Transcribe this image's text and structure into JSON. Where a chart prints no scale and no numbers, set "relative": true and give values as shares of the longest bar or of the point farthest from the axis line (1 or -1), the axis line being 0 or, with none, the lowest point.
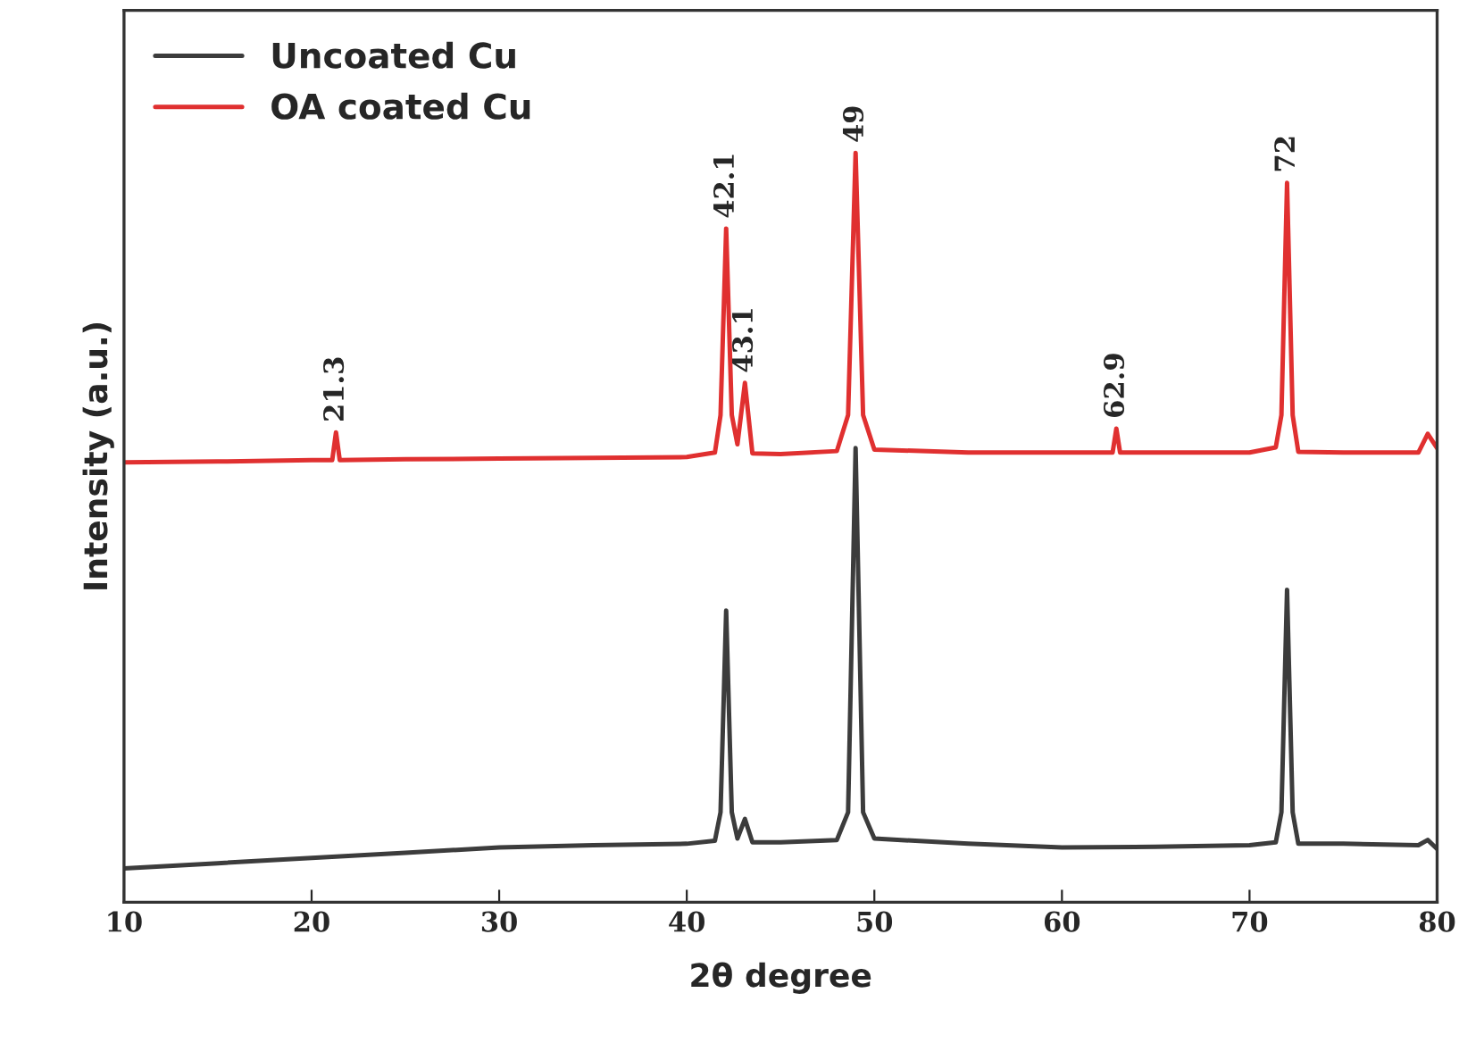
{
  "chart_data": {
    "type": "line",
    "relative": true,
    "xlabel": "2θ degree",
    "ylabel": "Intensity (a.u.)",
    "xlim": [
      10,
      80
    ],
    "xticks": [
      10,
      20,
      30,
      40,
      50,
      60,
      70,
      80
    ],
    "legend": "top left",
    "grid": false,
    "marker": "none",
    "line_style": "solid",
    "series": [
      {
        "name": "Uncoated Cu",
        "color": "#3c3c3c",
        "x": [
          10,
          15,
          20,
          25,
          30,
          35,
          40,
          41.5,
          41.8,
          42.1,
          42.4,
          42.7,
          43.1,
          43.5,
          45,
          48,
          48.6,
          49,
          49.4,
          50,
          55,
          60,
          65,
          70,
          71.4,
          71.7,
          72,
          72.3,
          72.6,
          75,
          79,
          79.5,
          80
        ],
        "values": [
          0.045,
          0.052,
          0.059,
          0.066,
          0.073,
          0.076,
          0.078,
          0.082,
          0.12,
          0.389,
          0.12,
          0.085,
          0.111,
          0.08,
          0.08,
          0.083,
          0.12,
          0.606,
          0.12,
          0.085,
          0.078,
          0.073,
          0.074,
          0.076,
          0.08,
          0.12,
          0.417,
          0.12,
          0.078,
          0.078,
          0.076,
          0.083,
          0.071
        ]
      },
      {
        "name": "OA coated Cu",
        "color": "#e03030",
        "x": [
          10,
          15,
          20,
          21.1,
          21.3,
          21.5,
          25,
          30,
          35,
          40,
          41.5,
          41.8,
          42.1,
          42.4,
          42.7,
          43.1,
          43.5,
          45,
          48,
          48.6,
          49,
          49.4,
          50,
          55,
          60,
          62.7,
          62.9,
          63.1,
          65,
          70,
          71.4,
          71.7,
          72,
          72.3,
          72.6,
          75,
          79,
          79.5,
          80
        ],
        "values": [
          0.587,
          0.588,
          0.59,
          0.59,
          0.627,
          0.59,
          0.591,
          0.592,
          0.593,
          0.594,
          0.6,
          0.65,
          0.899,
          0.65,
          0.611,
          0.693,
          0.599,
          0.598,
          0.602,
          0.65,
          1.0,
          0.65,
          0.604,
          0.6,
          0.6,
          0.6,
          0.632,
          0.6,
          0.6,
          0.6,
          0.607,
          0.65,
          0.96,
          0.65,
          0.601,
          0.6,
          0.6,
          0.625,
          0.606
        ]
      }
    ],
    "annotations": [
      {
        "text": "21.3",
        "x": 21.3,
        "y": 0.627
      },
      {
        "text": "42.1",
        "x": 42.1,
        "y": 0.899
      },
      {
        "text": "43.1",
        "x": 43.1,
        "y": 0.693
      },
      {
        "text": "49",
        "x": 49,
        "y": 1.0
      },
      {
        "text": "62.9",
        "x": 62.9,
        "y": 0.632
      },
      {
        "text": "72",
        "x": 72,
        "y": 0.96
      }
    ]
  }
}
